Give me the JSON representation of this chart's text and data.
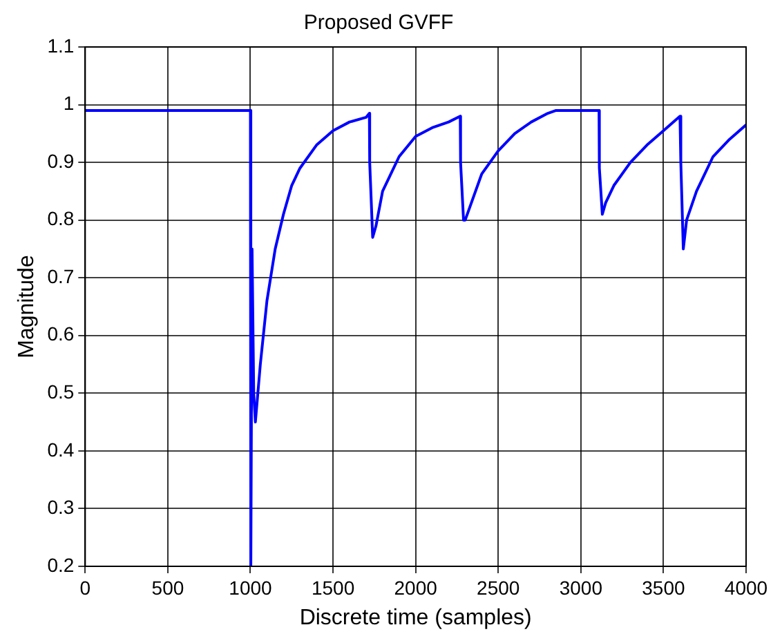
{
  "chart_data": {
    "type": "line",
    "title": "Proposed GVFF",
    "xlabel": "Discrete time (samples)",
    "ylabel": "Magnitude",
    "x": [
      0,
      1000,
      1000,
      1005,
      1010,
      1020,
      1030,
      1060,
      1100,
      1150,
      1200,
      1250,
      1300,
      1400,
      1500,
      1600,
      1700,
      1720,
      1722,
      1740,
      1760,
      1800,
      1900,
      2000,
      2100,
      2200,
      2270,
      2272,
      2290,
      2300,
      2400,
      2500,
      2600,
      2700,
      2800,
      2850,
      3110,
      3112,
      3130,
      3150,
      3200,
      3300,
      3400,
      3500,
      3600,
      3605,
      3620,
      3640,
      3700,
      3800,
      3900,
      4000
    ],
    "series": [
      {
        "color": "#0000ff",
        "values": [
          0.99,
          0.99,
          0.2,
          0.2,
          0.75,
          0.5,
          0.45,
          0.55,
          0.66,
          0.75,
          0.81,
          0.86,
          0.89,
          0.93,
          0.955,
          0.97,
          0.978,
          0.985,
          0.9,
          0.77,
          0.79,
          0.85,
          0.91,
          0.945,
          0.96,
          0.97,
          0.98,
          0.9,
          0.8,
          0.8,
          0.88,
          0.92,
          0.95,
          0.97,
          0.985,
          0.99,
          0.99,
          0.89,
          0.81,
          0.83,
          0.86,
          0.9,
          0.93,
          0.955,
          0.98,
          0.9,
          0.75,
          0.8,
          0.85,
          0.91,
          0.94,
          0.965
        ]
      }
    ],
    "xlim": [
      0,
      4000
    ],
    "xticks": [
      0,
      500,
      1000,
      1500,
      2000,
      2500,
      3000,
      3500,
      4000
    ],
    "ylim": [
      0.2,
      1.1
    ],
    "yticks": [
      0.2,
      0.3,
      0.4,
      0.5,
      0.6,
      0.7,
      0.8,
      0.9,
      1,
      1.1
    ],
    "grid": true,
    "legend": false,
    "marker": "none",
    "line_style": "solid"
  }
}
